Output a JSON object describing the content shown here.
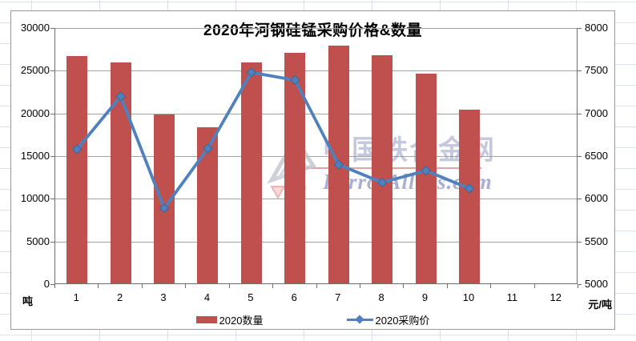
{
  "chart_data": {
    "type": "combo",
    "title": "2020年河钢硅锰采购价格&数量",
    "categories": [
      "1",
      "2",
      "3",
      "4",
      "5",
      "6",
      "7",
      "8",
      "9",
      "10",
      "11",
      "12"
    ],
    "series": [
      {
        "name": "2020数量",
        "type": "bar",
        "axis": "left",
        "color": "#C0504D",
        "values": [
          26600,
          25900,
          19800,
          18300,
          25900,
          27000,
          27800,
          26700,
          24600,
          20300,
          null,
          null
        ]
      },
      {
        "name": "2020采购价",
        "type": "line",
        "axis": "right",
        "color": "#4F81BD",
        "values": [
          6580,
          7200,
          5890,
          6590,
          7480,
          7390,
          6400,
          6190,
          6330,
          6120,
          null,
          null
        ]
      }
    ],
    "left_axis": {
      "min": 0,
      "max": 30000,
      "step": 5000,
      "unit": "吨"
    },
    "right_axis": {
      "min": 5000,
      "max": 8000,
      "step": 500,
      "unit": "元/吨"
    },
    "grid": true,
    "legend_position": "bottom"
  },
  "watermark": {
    "line1": "中国铁合金网",
    "line2": "Ferro-Alloys.com"
  }
}
